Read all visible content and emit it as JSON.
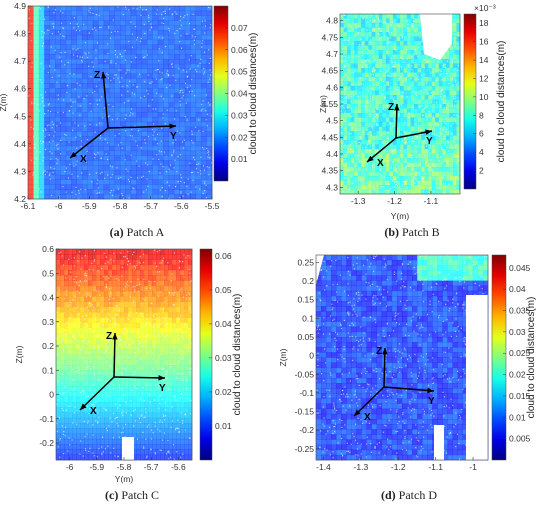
{
  "figure": {
    "caption_separator": " "
  },
  "chart_data": [
    {
      "type": "heatmap",
      "panel": "a",
      "caption_letter": "(a)",
      "caption_text": "Patch A",
      "xlabel": "",
      "ylabel": "Z(m)",
      "xlim": [
        -6.1,
        -5.5
      ],
      "ylim": [
        4.2,
        4.9
      ],
      "xticks": [
        -6.1,
        -6,
        -5.9,
        -5.8,
        -5.7,
        -5.6,
        -5.5
      ],
      "xticklabels": [
        "-6.1",
        "-6",
        "-5.9",
        "-5.8",
        "-5.7",
        "-5.6",
        "-5.5"
      ],
      "yticks": [
        4.2,
        4.3,
        4.4,
        4.5,
        4.6,
        4.7,
        4.8,
        4.9
      ],
      "colorbar": {
        "label": "cloud to cloud distances(m)",
        "min": 0,
        "max": 0.08,
        "ticks": [
          0.01,
          0.02,
          0.03,
          0.04,
          0.05,
          0.06,
          0.07
        ],
        "exponent": ""
      },
      "axes_labels": {
        "x": "X",
        "y": "Y",
        "z": "Z"
      },
      "grid": false
    },
    {
      "type": "heatmap",
      "panel": "b",
      "caption_letter": "(b)",
      "caption_text": "Patch B",
      "xlabel": "Y(m)",
      "ylabel": "Z(m)",
      "xlim": [
        -1.35,
        -1.02
      ],
      "ylim": [
        4.28,
        4.82
      ],
      "xticks": [
        -1.3,
        -1.2,
        -1.1
      ],
      "xticklabels": [
        "-1.3",
        "-1.2",
        "-1.1"
      ],
      "yticks": [
        4.3,
        4.35,
        4.4,
        4.45,
        4.5,
        4.55,
        4.6,
        4.65,
        4.7,
        4.75,
        4.8
      ],
      "colorbar": {
        "label": "cloud to cloud distances(m)",
        "min": 0,
        "max": 19,
        "ticks": [
          2,
          4,
          6,
          8,
          10,
          12,
          14,
          16,
          18
        ],
        "exponent": "×10⁻³"
      },
      "axes_labels": {
        "x": "X",
        "y": "Y",
        "z": "Z"
      },
      "grid": false
    },
    {
      "type": "heatmap",
      "panel": "c",
      "caption_letter": "(c)",
      "caption_text": "Patch C",
      "xlabel": "Y(m)",
      "ylabel": "Z(m)",
      "xlim": [
        -6.05,
        -5.55
      ],
      "ylim": [
        -0.27,
        0.6
      ],
      "xticks": [
        -6,
        -5.9,
        -5.8,
        -5.7,
        -5.6
      ],
      "xticklabels": [
        "-6",
        "-5.9",
        "-5.8",
        "-5.7",
        "-5.6"
      ],
      "yticks": [
        -0.2,
        -0.1,
        0,
        0.1,
        0.2,
        0.3,
        0.4,
        0.5,
        0.6
      ],
      "colorbar": {
        "label": "cloud to cloud distances(m)",
        "min": 0,
        "max": 0.062,
        "ticks": [
          0.01,
          0.02,
          0.03,
          0.04,
          0.05,
          0.06
        ],
        "exponent": ""
      },
      "axes_labels": {
        "x": "X",
        "y": "Y",
        "z": "Z"
      },
      "grid": false
    },
    {
      "type": "heatmap",
      "panel": "d",
      "caption_letter": "(d)",
      "caption_text": "Patch D",
      "xlabel": "",
      "ylabel": "Z(m)",
      "xlim": [
        -1.42,
        -0.96
      ],
      "ylim": [
        -0.28,
        0.27
      ],
      "xticks": [
        -1.4,
        -1.3,
        -1.2,
        -1.1,
        -1
      ],
      "xticklabels": [
        "-1.4",
        "-1.3",
        "-1.2",
        "-1.1",
        "-1"
      ],
      "yticks": [
        -0.25,
        -0.2,
        -0.15,
        -0.1,
        -0.05,
        0,
        0.05,
        0.1,
        0.15,
        0.2,
        0.25
      ],
      "colorbar": {
        "label": "cloud to cloud distances(m)",
        "min": 0,
        "max": 0.048,
        "ticks": [
          0.005,
          0.01,
          0.015,
          0.02,
          0.025,
          0.03,
          0.035,
          0.04,
          0.045
        ],
        "exponent": ""
      },
      "axes_labels": {
        "x": "X",
        "y": "Y",
        "z": "Z"
      },
      "grid": false
    }
  ]
}
